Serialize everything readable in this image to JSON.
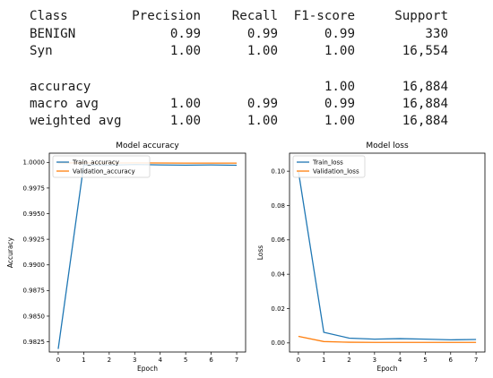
{
  "report": {
    "header": [
      "Class",
      "Precision",
      "Recall",
      "F1-score",
      "Support"
    ],
    "rows": [
      [
        "BENIGN",
        "0.99",
        "0.99",
        "0.99",
        "330"
      ],
      [
        "Syn",
        "1.00",
        "1.00",
        "1.00",
        "16,554"
      ],
      [
        "accuracy",
        "",
        "",
        "1.00",
        "16,884"
      ],
      [
        "macro avg",
        "1.00",
        "0.99",
        "0.99",
        "16,884"
      ],
      [
        "weighted avg",
        "1.00",
        "1.00",
        "1.00",
        "16,884"
      ]
    ]
  },
  "colors": {
    "train": "#1f77b4",
    "validation": "#ff7f0e"
  },
  "chart_data": [
    {
      "type": "line",
      "title": "Model accuracy",
      "xlabel": "Epoch",
      "ylabel": "Accuracy",
      "x": [
        0,
        1,
        2,
        3,
        4,
        5,
        6,
        7
      ],
      "xticks": [
        "0",
        "1",
        "2",
        "3",
        "4",
        "5",
        "6",
        "7"
      ],
      "yticks": [
        "0.9825",
        "0.9850",
        "0.9875",
        "0.9900",
        "0.9925",
        "0.9950",
        "0.9975",
        "1.0000"
      ],
      "ytick_values": [
        0.9825,
        0.985,
        0.9875,
        0.99,
        0.9925,
        0.995,
        0.9975,
        1.0
      ],
      "ylim": [
        0.9815,
        1.0009
      ],
      "xlim": [
        -0.35,
        7.35
      ],
      "legend_position": "top-left",
      "series": [
        {
          "name": "Train_accuracy",
          "values": [
            0.9818,
            0.99975,
            0.99972,
            0.9998,
            0.99975,
            0.99973,
            0.99975,
            0.99972
          ]
        },
        {
          "name": "Validation_accuracy",
          "values": [
            0.99995,
            0.99995,
            0.99994,
            0.99995,
            0.99994,
            0.99993,
            0.99993,
            0.99993
          ]
        }
      ]
    },
    {
      "type": "line",
      "title": "Model loss",
      "xlabel": "Epoch",
      "ylabel": "Loss",
      "x": [
        0,
        1,
        2,
        3,
        4,
        5,
        6,
        7
      ],
      "xticks": [
        "0",
        "1",
        "2",
        "3",
        "4",
        "5",
        "6",
        "7"
      ],
      "yticks": [
        "0.00",
        "0.02",
        "0.04",
        "0.06",
        "0.08",
        "0.10"
      ],
      "ytick_values": [
        0.0,
        0.02,
        0.04,
        0.06,
        0.08,
        0.1
      ],
      "ylim": [
        -0.0053,
        0.1105
      ],
      "xlim": [
        -0.35,
        7.35
      ],
      "legend_position": "top-left",
      "series": [
        {
          "name": "Train_loss",
          "values": [
            0.1,
            0.0062,
            0.0028,
            0.0022,
            0.0025,
            0.0022,
            0.0018,
            0.002
          ]
        },
        {
          "name": "Validation_loss",
          "values": [
            0.0038,
            0.0008,
            0.0004,
            0.0003,
            0.0003,
            0.0003,
            0.0003,
            0.0003
          ]
        }
      ]
    }
  ]
}
